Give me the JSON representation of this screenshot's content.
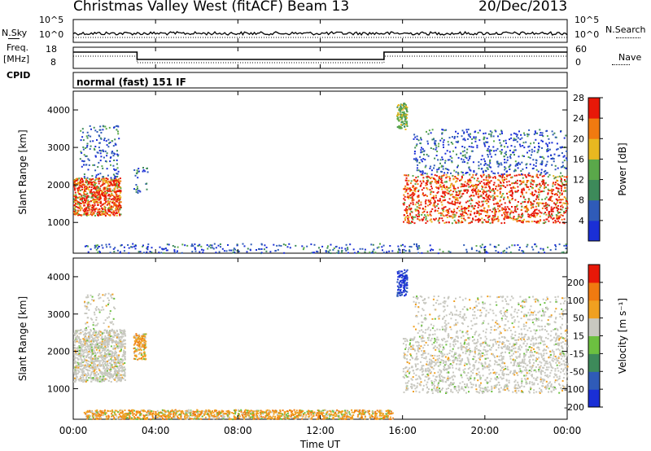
{
  "header": {
    "title": "Christmas Valley West (fitACF)",
    "beam": "Beam 13",
    "date": "20/Dec/2013"
  },
  "noise_panel": {
    "left_label": "N.Sky",
    "right_label": "N.Search",
    "left_ticks": [
      "10^5",
      "10^0"
    ],
    "right_ticks": [
      "10^5",
      "10^0"
    ]
  },
  "freq_panel": {
    "left_label_line1": "Freq.",
    "left_label_line2": "[MHz]",
    "right_label": "Nave",
    "left_ticks": [
      "18",
      "8"
    ],
    "right_ticks": [
      "60",
      "0"
    ]
  },
  "cpid": {
    "label": "CPID",
    "value": "normal (fast) 151 IF"
  },
  "chart_data": [
    {
      "type": "heatmap",
      "name": "power",
      "ylabel": "Slant Range [km]",
      "xlabel": "",
      "yticks": [
        "1000",
        "2000",
        "3000",
        "4000"
      ],
      "ylim": [
        180,
        4500
      ],
      "xlim_hours": [
        0,
        24
      ],
      "colorbar": {
        "label": "Power [dB]",
        "ticks": [
          "4",
          "8",
          "12",
          "16",
          "20",
          "24",
          "28"
        ],
        "colors": [
          "#1a2fd6",
          "#2f5bb8",
          "#3d8a5a",
          "#5aa84a",
          "#e8b820",
          "#f07a10",
          "#e81808"
        ]
      },
      "regions": [
        {
          "t0": 0.0,
          "t1": 2.3,
          "r0": 1200,
          "r1": 2200,
          "level": "high"
        },
        {
          "t0": 0.3,
          "t1": 2.2,
          "r0": 2200,
          "r1": 3600,
          "level": "low"
        },
        {
          "t0": 2.9,
          "t1": 3.6,
          "r0": 1800,
          "r1": 2500,
          "level": "low"
        },
        {
          "t0": 0.5,
          "t1": 24.0,
          "r0": 200,
          "r1": 450,
          "level": "low"
        },
        {
          "t0": 15.7,
          "t1": 16.2,
          "r0": 3500,
          "r1": 4200,
          "level": "mid"
        },
        {
          "t0": 16.0,
          "t1": 24.0,
          "r0": 1000,
          "r1": 2300,
          "level": "high"
        },
        {
          "t0": 16.5,
          "t1": 24.0,
          "r0": 2300,
          "r1": 3500,
          "level": "low"
        }
      ]
    },
    {
      "type": "heatmap",
      "name": "velocity",
      "ylabel": "Slant Range [km]",
      "xlabel": "Time UT",
      "yticks": [
        "1000",
        "2000",
        "3000",
        "4000"
      ],
      "ylim": [
        180,
        4500
      ],
      "xticks": [
        "00:00",
        "04:00",
        "08:00",
        "12:00",
        "16:00",
        "20:00",
        "00:00"
      ],
      "colorbar": {
        "label": "Velocity [m s⁻¹]",
        "ticks": [
          "200",
          "100",
          "50",
          "15",
          "-15",
          "-50",
          "-100",
          "-200"
        ],
        "colors": [
          "#1a2fd6",
          "#2f5bb8",
          "#3d8a5a",
          "#6cc040",
          "#c8c8c0",
          "#f0a020",
          "#f07a10",
          "#e81808"
        ]
      },
      "regions": [
        {
          "t0": 0.0,
          "t1": 2.5,
          "r0": 1200,
          "r1": 2600,
          "level": "grey"
        },
        {
          "t0": 0.5,
          "t1": 2.0,
          "r0": 2600,
          "r1": 3600,
          "level": "grey-sparse"
        },
        {
          "t0": 2.9,
          "t1": 3.5,
          "r0": 1800,
          "r1": 2500,
          "level": "orange"
        },
        {
          "t0": 0.5,
          "t1": 15.5,
          "r0": 200,
          "r1": 450,
          "level": "orange"
        },
        {
          "t0": 15.7,
          "t1": 16.2,
          "r0": 3500,
          "r1": 4200,
          "level": "blue"
        },
        {
          "t0": 16.0,
          "t1": 24.0,
          "r0": 900,
          "r1": 2400,
          "level": "grey"
        },
        {
          "t0": 16.5,
          "t1": 24.0,
          "r0": 2400,
          "r1": 3500,
          "level": "grey-sparse"
        }
      ]
    }
  ]
}
